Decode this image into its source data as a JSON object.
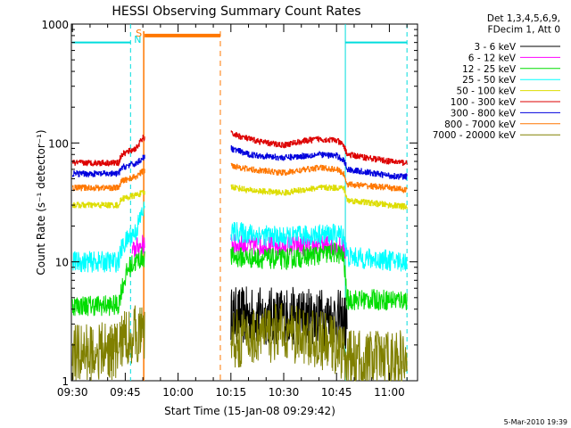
{
  "chart_data": {
    "type": "line",
    "title": "HESSI Observing Summary Count Rates",
    "xlabel": "Start Time (15-Jan-08 09:29:42)",
    "ylabel": "Count Rate (s⁻¹ detector⁻¹)",
    "x_ticks": [
      "09:30",
      "09:45",
      "10:00",
      "10:15",
      "10:30",
      "10:45",
      "11:00"
    ],
    "xlim": [
      "09:29:42",
      "11:08:00"
    ],
    "y_scale": "log",
    "ylim": [
      1,
      1000
    ],
    "y_ticks": [
      {
        "value": 1,
        "label": "1"
      },
      {
        "value": 10,
        "label": "10"
      },
      {
        "value": 100,
        "label": "100"
      },
      {
        "value": 1000,
        "label": "1000"
      }
    ],
    "legend_header": [
      "Det 1,3,4,5,6,9,",
      "FDecim 1, Att 0"
    ],
    "legend_position": "right",
    "series": [
      {
        "name": "3 - 6 keV",
        "color": "#000000",
        "style": "noisy-low",
        "points": [
          [
            "10:15",
            3.5
          ],
          [
            "10:30",
            3.5
          ],
          [
            "10:45",
            3.4
          ],
          [
            "10:48",
            3.0
          ]
        ]
      },
      {
        "name": "6 - 12 keV",
        "color": "#ff00ff",
        "style": "noisy",
        "points": [
          [
            "09:47",
            12
          ],
          [
            "09:48",
            13
          ],
          [
            "09:50",
            14
          ],
          [
            "10:15",
            14
          ],
          [
            "10:30",
            13.5
          ],
          [
            "10:45",
            14
          ],
          [
            "10:48",
            12
          ]
        ]
      },
      {
        "name": "12 - 25 keV",
        "color": "#00dd00",
        "style": "noisy",
        "points": [
          [
            "09:30",
            4.3
          ],
          [
            "09:43",
            4.3
          ],
          [
            "09:44",
            6
          ],
          [
            "09:46",
            9
          ],
          [
            "09:50",
            11
          ],
          [
            "10:15",
            11
          ],
          [
            "10:30",
            10.5
          ],
          [
            "10:45",
            12
          ],
          [
            "10:47",
            11
          ],
          [
            "10:48",
            4.8
          ],
          [
            "11:05",
            4.8
          ]
        ]
      },
      {
        "name": "25 - 50 keV",
        "color": "#00ffff",
        "style": "noisy",
        "points": [
          [
            "09:30",
            10
          ],
          [
            "09:43",
            10
          ],
          [
            "09:44",
            13
          ],
          [
            "09:46",
            16
          ],
          [
            "09:48",
            18
          ],
          [
            "09:50",
            27
          ],
          [
            "10:15",
            18
          ],
          [
            "10:30",
            16
          ],
          [
            "10:40",
            17
          ],
          [
            "10:47",
            17
          ],
          [
            "10:48",
            11
          ],
          [
            "11:05",
            10
          ]
        ]
      },
      {
        "name": "50 - 100 keV",
        "color": "#dddd00",
        "style": "smooth",
        "points": [
          [
            "09:30",
            30
          ],
          [
            "09:43",
            30
          ],
          [
            "09:44",
            34
          ],
          [
            "09:46",
            35
          ],
          [
            "09:50",
            38
          ],
          [
            "10:15",
            43
          ],
          [
            "10:20",
            40
          ],
          [
            "10:30",
            38
          ],
          [
            "10:37",
            41
          ],
          [
            "10:41",
            42
          ],
          [
            "10:47",
            42
          ],
          [
            "10:48",
            33
          ],
          [
            "11:00",
            30
          ],
          [
            "11:05",
            29
          ]
        ]
      },
      {
        "name": "100 - 300 keV",
        "color": "#dd0000",
        "style": "smooth",
        "points": [
          [
            "09:30",
            68
          ],
          [
            "09:43",
            68
          ],
          [
            "09:44",
            80
          ],
          [
            "09:46",
            85
          ],
          [
            "09:48",
            90
          ],
          [
            "09:50",
            110
          ],
          [
            "10:15",
            120
          ],
          [
            "10:20",
            108
          ],
          [
            "10:25",
            100
          ],
          [
            "10:30",
            96
          ],
          [
            "10:35",
            103
          ],
          [
            "10:40",
            108
          ],
          [
            "10:45",
            105
          ],
          [
            "10:47",
            95
          ],
          [
            "10:48",
            80
          ],
          [
            "11:00",
            70
          ],
          [
            "11:05",
            68
          ]
        ]
      },
      {
        "name": "300 - 800 keV",
        "color": "#0000dd",
        "style": "smooth",
        "points": [
          [
            "09:30",
            55
          ],
          [
            "09:43",
            55
          ],
          [
            "09:44",
            62
          ],
          [
            "09:46",
            65
          ],
          [
            "09:48",
            67
          ],
          [
            "09:50",
            75
          ],
          [
            "10:15",
            90
          ],
          [
            "10:20",
            80
          ],
          [
            "10:30",
            75
          ],
          [
            "10:40",
            80
          ],
          [
            "10:45",
            78
          ],
          [
            "10:47",
            72
          ],
          [
            "10:48",
            60
          ],
          [
            "11:00",
            53
          ],
          [
            "11:05",
            52
          ]
        ]
      },
      {
        "name": "800 - 7000 keV",
        "color": "#ff7700",
        "style": "smooth",
        "points": [
          [
            "09:30",
            42
          ],
          [
            "09:43",
            42
          ],
          [
            "09:44",
            48
          ],
          [
            "09:46",
            50
          ],
          [
            "09:48",
            52
          ],
          [
            "09:50",
            58
          ],
          [
            "10:15",
            65
          ],
          [
            "10:20",
            60
          ],
          [
            "10:30",
            56
          ],
          [
            "10:40",
            62
          ],
          [
            "10:45",
            60
          ],
          [
            "10:47",
            55
          ],
          [
            "10:48",
            45
          ],
          [
            "11:00",
            42
          ],
          [
            "11:05",
            40
          ]
        ]
      },
      {
        "name": "7000 - 20000 keV",
        "color": "#808000",
        "style": "noisy-low",
        "points": [
          [
            "09:30",
            1.7
          ],
          [
            "09:43",
            1.8
          ],
          [
            "09:44",
            2.2
          ],
          [
            "09:48",
            2.5
          ],
          [
            "10:15",
            2.2
          ],
          [
            "10:30",
            2.6
          ],
          [
            "10:45",
            2.0
          ],
          [
            "10:48",
            1.5
          ],
          [
            "11:05",
            1.5
          ]
        ]
      }
    ],
    "annotations": [
      {
        "label": "S",
        "color": "#ff7700",
        "type": "saa",
        "start": "09:50:30",
        "end": "10:12:00",
        "level": 800
      },
      {
        "label": "N",
        "color": "#00dddd",
        "type": "night",
        "intervals": [
          [
            "09:30",
            "09:46:30"
          ],
          [
            "10:47:30",
            "11:05:00"
          ]
        ],
        "level": 700
      }
    ],
    "data_gaps": [
      [
        "09:50:30",
        "10:15:00"
      ]
    ],
    "timestamp": "5-Mar-2010 19:39"
  }
}
